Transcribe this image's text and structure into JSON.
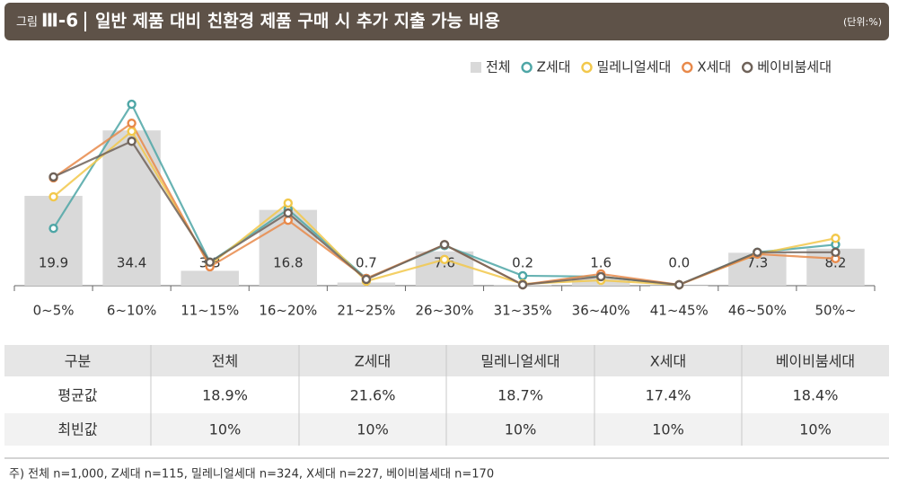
{
  "header": {
    "figure_prefix": "그림",
    "figure_number": "Ⅲ-6",
    "title": "일반 제품 대비 친환경 제품 구매 시 추가 지출 가능 비용",
    "unit": "(단위:%)"
  },
  "chart_data": {
    "type": "combo",
    "categories": [
      "0~5%",
      "6~10%",
      "11~15%",
      "16~20%",
      "21~25%",
      "26~30%",
      "31~35%",
      "36~40%",
      "41~45%",
      "46~50%",
      "50%~"
    ],
    "ylim": [
      0,
      42
    ],
    "series": [
      {
        "name": "전체",
        "kind": "bar",
        "color": "#d9d9d9",
        "values": [
          19.9,
          34.4,
          3.3,
          16.8,
          0.7,
          7.6,
          0.2,
          1.6,
          0.0,
          7.3,
          8.2
        ],
        "value_labels": [
          "19.9",
          "34.4",
          "3.3",
          "16.8",
          "0.7",
          "7.6",
          "0.2",
          "1.6",
          "0.0",
          "7.3",
          "8.2"
        ]
      },
      {
        "name": "Z세대",
        "kind": "line",
        "color": "#4ea6a6",
        "values": [
          12.7,
          40.2,
          5.2,
          16.9,
          1.6,
          8.9,
          2.2,
          2.0,
          0.2,
          7.4,
          9.1
        ]
      },
      {
        "name": "밀레니얼세대",
        "kind": "line",
        "color": "#f2c84b",
        "values": [
          19.7,
          34.2,
          4.6,
          18.3,
          1.0,
          5.8,
          0.4,
          1.2,
          0.2,
          7.0,
          10.5
        ]
      },
      {
        "name": "X세대",
        "kind": "line",
        "color": "#e8894a",
        "values": [
          23.9,
          36.0,
          4.2,
          14.5,
          1.6,
          9.1,
          0.2,
          2.6,
          0.2,
          7.0,
          6.0
        ]
      },
      {
        "name": "베이비붐세대",
        "kind": "line",
        "color": "#6e6259",
        "values": [
          24.1,
          32.0,
          5.2,
          16.1,
          1.4,
          9.1,
          0.2,
          2.0,
          0.2,
          7.4,
          7.4
        ]
      }
    ]
  },
  "table": {
    "header": [
      "구분",
      "전체",
      "Z세대",
      "밀레니얼세대",
      "X세대",
      "베이비붐세대"
    ],
    "rows": [
      [
        "평균값",
        "18.9%",
        "21.6%",
        "18.7%",
        "17.4%",
        "18.4%"
      ],
      [
        "최빈값",
        "10%",
        "10%",
        "10%",
        "10%",
        "10%"
      ]
    ]
  },
  "note": "주) 전체 n=1,000, Z세대 n=115, 밀레니얼세대 n=324, X세대 n=227, 베이비붐세대 n=170"
}
